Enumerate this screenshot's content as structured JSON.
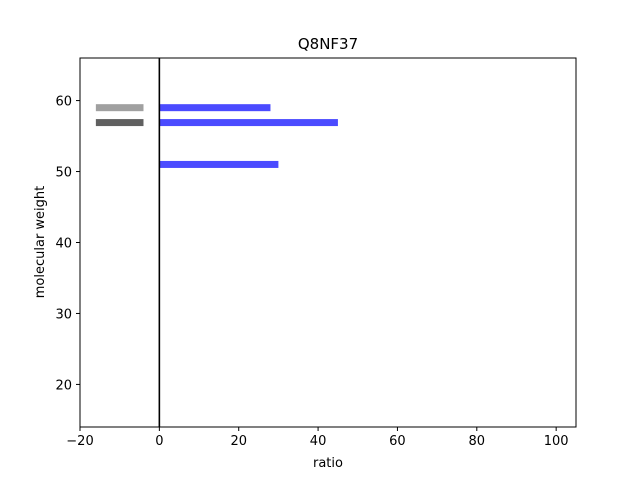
{
  "chart_data": {
    "type": "bar",
    "title": "Q8NF37",
    "xlabel": "ratio",
    "ylabel": "molecular weight",
    "xlim": [
      -20,
      105
    ],
    "ylim": [
      14,
      66
    ],
    "xticks": [
      -20,
      0,
      20,
      40,
      60,
      80,
      100
    ],
    "yticks": [
      20,
      30,
      40,
      50,
      60
    ],
    "grid": false,
    "reference_line_x": 0,
    "marker_bands": [
      {
        "y": 59.0,
        "x_start": -16,
        "x_end": -4,
        "color": "#a0a0a0"
      },
      {
        "y": 56.9,
        "x_start": -16,
        "x_end": -4,
        "color": "#606060"
      }
    ],
    "bars": [
      {
        "y": 59.0,
        "value": 28,
        "color": "#4b4bff"
      },
      {
        "y": 56.9,
        "value": 45,
        "color": "#4b4bff"
      },
      {
        "y": 51.0,
        "value": 30,
        "color": "#4b4bff"
      }
    ]
  }
}
